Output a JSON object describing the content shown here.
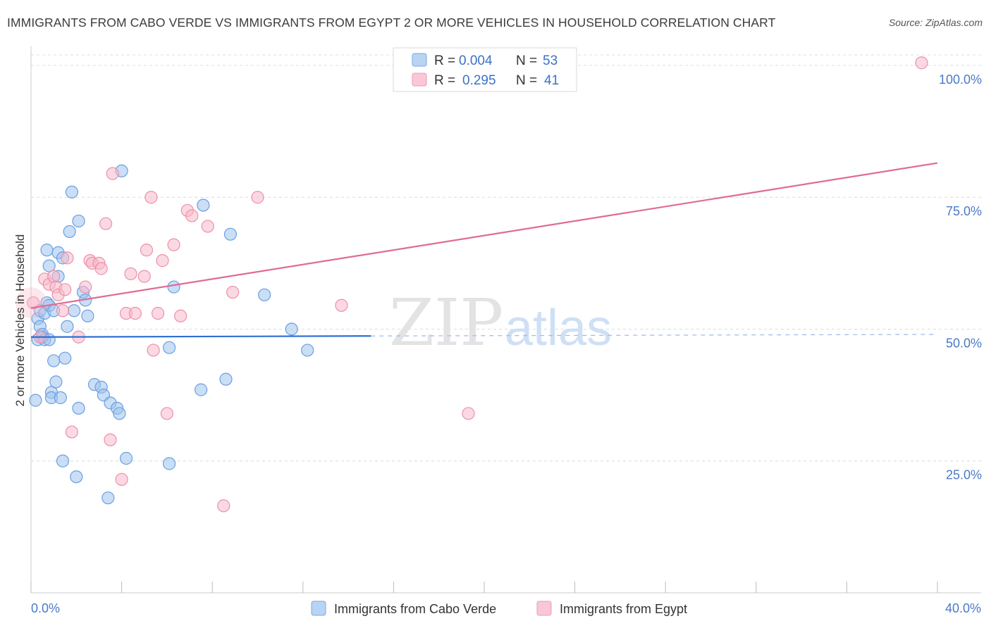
{
  "title": "IMMIGRANTS FROM CABO VERDE VS IMMIGRANTS FROM EGYPT 2 OR MORE VEHICLES IN HOUSEHOLD CORRELATION CHART",
  "source": "Source: ZipAtlas.com",
  "watermark": {
    "zip": "ZIP",
    "atlas": "atlas"
  },
  "chart_data": {
    "type": "scatter",
    "title": "IMMIGRANTS FROM CABO VERDE VS IMMIGRANTS FROM EGYPT 2 OR MORE VEHICLES IN HOUSEHOLD CORRELATION CHART",
    "xlabel": "",
    "ylabel": "2 or more Vehicles in Household",
    "xlim": [
      0,
      40
    ],
    "ylim": [
      0,
      102
    ],
    "x_tick_labels": [
      "0.0%",
      "40.0%"
    ],
    "y_ticks": [
      25,
      50,
      75,
      100
    ],
    "y_tick_labels": [
      "25.0%",
      "50.0%",
      "75.0%",
      "100.0%"
    ],
    "legend": {
      "r_label": "R =",
      "n_label": "N =",
      "entries": [
        {
          "r": "0.004",
          "n": "53"
        },
        {
          "r": "0.295",
          "n": "41"
        }
      ]
    },
    "series": [
      {
        "name": "Immigrants from Cabo Verde",
        "color": "#9ec3ee",
        "stroke": "#6a9fe0",
        "line_color": "#2d6fd1",
        "trend": {
          "x0": 0,
          "y0": 48.5,
          "x1": 15,
          "y1": 48.7,
          "dash_to_x": 40,
          "dash_y1": 49.0
        },
        "points": [
          [
            0.2,
            36.5
          ],
          [
            0.3,
            52.0
          ],
          [
            0.3,
            48.0
          ],
          [
            0.4,
            53.5
          ],
          [
            0.4,
            50.5
          ],
          [
            0.5,
            49.0
          ],
          [
            0.5,
            48.5
          ],
          [
            0.6,
            53.0
          ],
          [
            0.6,
            48.0
          ],
          [
            0.7,
            65.0
          ],
          [
            0.7,
            55.0
          ],
          [
            0.8,
            54.5
          ],
          [
            0.8,
            48.0
          ],
          [
            0.8,
            62.0
          ],
          [
            0.9,
            38.0
          ],
          [
            0.9,
            37.0
          ],
          [
            1.0,
            44.0
          ],
          [
            1.0,
            53.5
          ],
          [
            1.1,
            40.0
          ],
          [
            1.2,
            60.0
          ],
          [
            1.2,
            64.5
          ],
          [
            1.3,
            37.0
          ],
          [
            1.4,
            25.0
          ],
          [
            1.4,
            63.5
          ],
          [
            1.5,
            44.5
          ],
          [
            1.6,
            50.5
          ],
          [
            1.7,
            68.5
          ],
          [
            1.8,
            76.0
          ],
          [
            1.9,
            53.5
          ],
          [
            2.0,
            22.0
          ],
          [
            2.1,
            35.0
          ],
          [
            2.1,
            70.5
          ],
          [
            2.3,
            57.0
          ],
          [
            2.4,
            55.5
          ],
          [
            2.5,
            52.5
          ],
          [
            2.8,
            39.5
          ],
          [
            3.1,
            39.0
          ],
          [
            3.2,
            37.5
          ],
          [
            3.4,
            18.0
          ],
          [
            3.5,
            36.0
          ],
          [
            3.8,
            35.0
          ],
          [
            3.9,
            34.0
          ],
          [
            4.0,
            80.0
          ],
          [
            4.2,
            25.5
          ],
          [
            6.1,
            46.5
          ],
          [
            6.1,
            24.5
          ],
          [
            6.3,
            58.0
          ],
          [
            7.5,
            38.5
          ],
          [
            7.6,
            73.5
          ],
          [
            8.6,
            40.5
          ],
          [
            8.8,
            68.0
          ],
          [
            10.3,
            56.5
          ],
          [
            11.5,
            50.0
          ],
          [
            12.2,
            46.0
          ]
        ]
      },
      {
        "name": "Immigrants from Egypt",
        "color": "#f7b9cb",
        "stroke": "#ee8fab",
        "line_color": "#e06a94",
        "trend": {
          "x0": 0,
          "y0": 54.0,
          "x1": 40,
          "y1": 81.5
        },
        "points": [
          [
            0.1,
            55.0
          ],
          [
            0.4,
            48.5
          ],
          [
            0.6,
            59.5
          ],
          [
            0.8,
            58.5
          ],
          [
            1.0,
            60.0
          ],
          [
            1.1,
            58.0
          ],
          [
            1.2,
            56.5
          ],
          [
            1.4,
            53.5
          ],
          [
            1.5,
            57.5
          ],
          [
            1.6,
            63.5
          ],
          [
            1.8,
            30.5
          ],
          [
            2.1,
            48.5
          ],
          [
            2.4,
            58.0
          ],
          [
            2.6,
            63.0
          ],
          [
            2.7,
            62.5
          ],
          [
            3.0,
            62.5
          ],
          [
            3.1,
            61.5
          ],
          [
            3.3,
            70.0
          ],
          [
            3.5,
            29.0
          ],
          [
            3.6,
            79.5
          ],
          [
            4.0,
            21.5
          ],
          [
            4.2,
            53.0
          ],
          [
            4.4,
            60.5
          ],
          [
            4.6,
            53.0
          ],
          [
            5.0,
            60.0
          ],
          [
            5.1,
            65.0
          ],
          [
            5.3,
            75.0
          ],
          [
            5.4,
            46.0
          ],
          [
            5.6,
            53.0
          ],
          [
            5.8,
            63.0
          ],
          [
            6.0,
            34.0
          ],
          [
            6.3,
            66.0
          ],
          [
            6.6,
            52.5
          ],
          [
            6.9,
            72.5
          ],
          [
            7.1,
            71.5
          ],
          [
            7.8,
            69.5
          ],
          [
            8.5,
            16.5
          ],
          [
            8.9,
            57.0
          ],
          [
            10.0,
            75.0
          ],
          [
            13.7,
            54.5
          ],
          [
            19.3,
            34.0
          ],
          [
            39.3,
            100.5
          ]
        ]
      }
    ]
  }
}
